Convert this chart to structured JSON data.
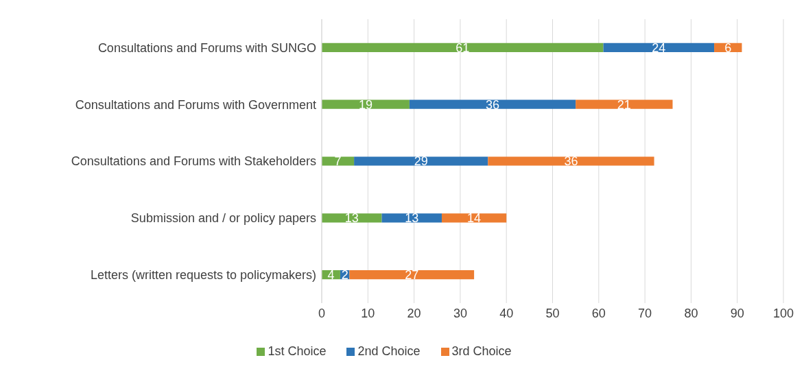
{
  "chart_data": {
    "type": "bar",
    "orientation": "horizontal",
    "stacked": true,
    "categories": [
      "Consultations and Forums with SUNGO",
      "Consultations and Forums with Government",
      "Consultations and Forums with Stakeholders",
      "Submission and / or policy papers",
      "Letters (written requests to policymakers)"
    ],
    "series": [
      {
        "name": "1st Choice",
        "color": "#70ad47",
        "values": [
          61,
          19,
          7,
          13,
          4
        ]
      },
      {
        "name": "2nd Choice",
        "color": "#2e75b6",
        "values": [
          24,
          36,
          29,
          13,
          2
        ]
      },
      {
        "name": "3rd Choice",
        "color": "#ed7d31",
        "values": [
          6,
          21,
          36,
          14,
          27
        ]
      }
    ],
    "xlim": [
      0,
      100
    ],
    "xticks": [
      0,
      10,
      20,
      30,
      40,
      50,
      60,
      70,
      80,
      90,
      100
    ],
    "grid": "x",
    "legend": "bottom",
    "data_labels": true
  }
}
